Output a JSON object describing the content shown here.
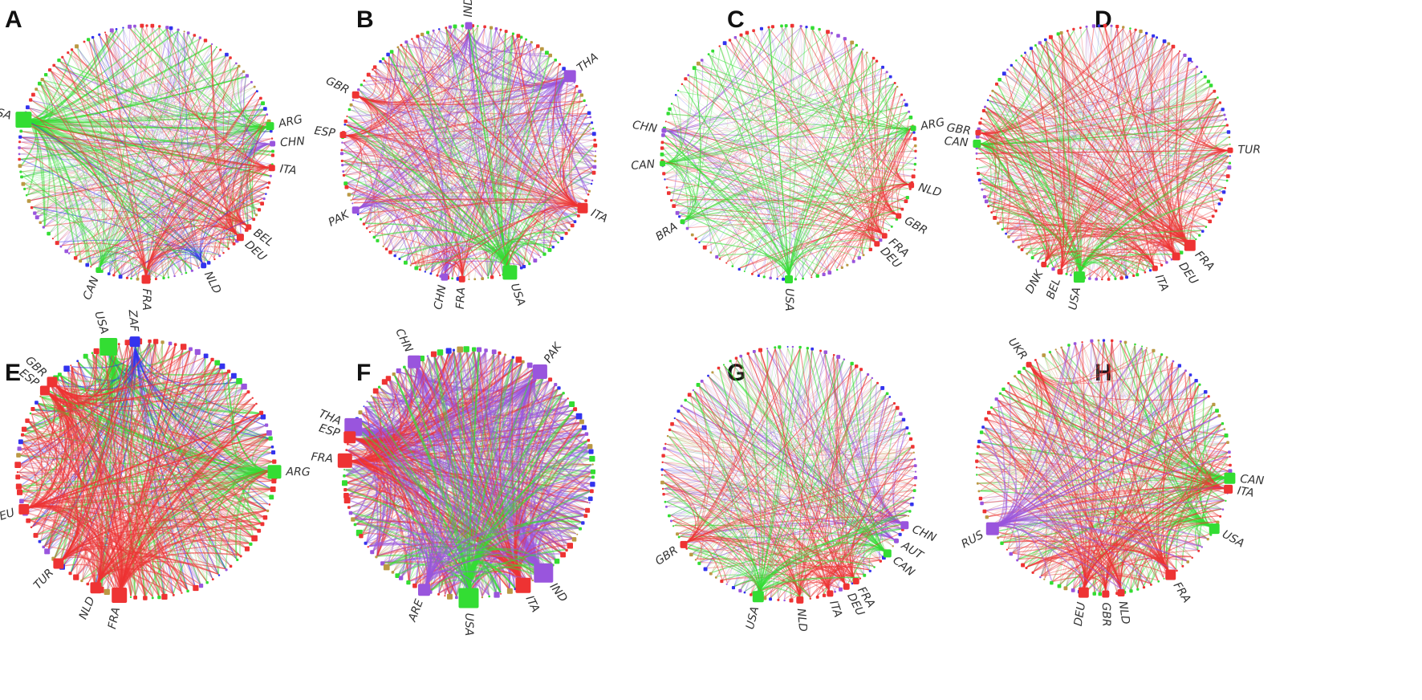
{
  "colors": {
    "green": "#33dd33",
    "red": "#ee3333",
    "purple": "#9955dd",
    "blue": "#3333ee",
    "olive": "#bb9944"
  },
  "panels": [
    {
      "letter": "A",
      "nodes": [
        {
          "label": "USA",
          "angle": 165,
          "size": 20,
          "color": "green"
        },
        {
          "label": "ARG",
          "angle": 12,
          "size": 10,
          "color": "green"
        },
        {
          "label": "CHN",
          "angle": 4,
          "size": 7,
          "color": "purple"
        },
        {
          "label": "ITA",
          "angle": -7,
          "size": 8,
          "color": "red"
        },
        {
          "label": "BEL",
          "angle": -36,
          "size": 7,
          "color": "red"
        },
        {
          "label": "DEU",
          "angle": -42,
          "size": 9,
          "color": "red"
        },
        {
          "label": "NLD",
          "angle": -63,
          "size": 7,
          "color": "blue"
        },
        {
          "label": "FRA",
          "angle": -90,
          "size": 11,
          "color": "red"
        },
        {
          "label": "CAN",
          "angle": -112,
          "size": 7,
          "color": "green"
        }
      ]
    },
    {
      "letter": "B",
      "nodes": [
        {
          "label": "IND",
          "angle": 90,
          "size": 9,
          "color": "purple"
        },
        {
          "label": "THA",
          "angle": 37,
          "size": 15,
          "color": "purple"
        },
        {
          "label": "GBR",
          "angle": 153,
          "size": 9,
          "color": "red"
        },
        {
          "label": "ESP",
          "angle": 172,
          "size": 8,
          "color": "red"
        },
        {
          "label": "PAK",
          "angle": -153,
          "size": 9,
          "color": "purple"
        },
        {
          "label": "CHN",
          "angle": -101,
          "size": 9,
          "color": "purple"
        },
        {
          "label": "FRA",
          "angle": -93,
          "size": 8,
          "color": "red"
        },
        {
          "label": "USA",
          "angle": -71,
          "size": 18,
          "color": "green"
        },
        {
          "label": "ITA",
          "angle": -26,
          "size": 13,
          "color": "red"
        }
      ]
    },
    {
      "letter": "C",
      "nodes": [
        {
          "label": "ARG",
          "angle": 11,
          "size": 7,
          "color": "green"
        },
        {
          "label": "CHN",
          "angle": 170,
          "size": 6,
          "color": "purple"
        },
        {
          "label": "CAN",
          "angle": -175,
          "size": 7,
          "color": "green"
        },
        {
          "label": "NLD",
          "angle": -15,
          "size": 7,
          "color": "red"
        },
        {
          "label": "GBR",
          "angle": -30,
          "size": 7,
          "color": "red"
        },
        {
          "label": "FRA",
          "angle": -41,
          "size": 7,
          "color": "red"
        },
        {
          "label": "DEU",
          "angle": -46,
          "size": 7,
          "color": "red"
        },
        {
          "label": "USA",
          "angle": -90,
          "size": 10,
          "color": "green"
        },
        {
          "label": "BRA",
          "angle": -147,
          "size": 6,
          "color": "green"
        }
      ]
    },
    {
      "letter": "D",
      "nodes": [
        {
          "label": "CAN",
          "angle": 176,
          "size": 10,
          "color": "green"
        },
        {
          "label": "GBR",
          "angle": 171,
          "size": 7,
          "color": "red"
        },
        {
          "label": "TUR",
          "angle": 1,
          "size": 7,
          "color": "red"
        },
        {
          "label": "FRA",
          "angle": -47,
          "size": 14,
          "color": "red"
        },
        {
          "label": "DEU",
          "angle": -55,
          "size": 10,
          "color": "red"
        },
        {
          "label": "ITA",
          "angle": -66,
          "size": 7,
          "color": "red"
        },
        {
          "label": "USA",
          "angle": -101,
          "size": 14,
          "color": "green"
        },
        {
          "label": "BEL",
          "angle": -110,
          "size": 7,
          "color": "red"
        },
        {
          "label": "DNK",
          "angle": -118,
          "size": 7,
          "color": "red"
        }
      ]
    },
    {
      "letter": "E",
      "nodes": [
        {
          "label": "USA",
          "angle": 107,
          "size": 22,
          "color": "green"
        },
        {
          "label": "ZAF",
          "angle": 95,
          "size": 13,
          "color": "blue"
        },
        {
          "label": "GBR",
          "angle": 137,
          "size": 13,
          "color": "red"
        },
        {
          "label": "ESP",
          "angle": 142,
          "size": 12,
          "color": "red"
        },
        {
          "label": "ARG",
          "angle": -1,
          "size": 17,
          "color": "green"
        },
        {
          "label": "DEU",
          "angle": -162,
          "size": 13,
          "color": "red"
        },
        {
          "label": "TUR",
          "angle": -133,
          "size": 13,
          "color": "red"
        },
        {
          "label": "NLD",
          "angle": -113,
          "size": 14,
          "color": "red"
        },
        {
          "label": "FRA",
          "angle": -102,
          "size": 19,
          "color": "red"
        }
      ]
    },
    {
      "letter": "F",
      "nodes": [
        {
          "label": "CHN",
          "angle": 116,
          "size": 16,
          "color": "purple"
        },
        {
          "label": "PAK",
          "angle": 55,
          "size": 18,
          "color": "purple"
        },
        {
          "label": "THA",
          "angle": 158,
          "size": 22,
          "color": "purple"
        },
        {
          "label": "ESP",
          "angle": 163,
          "size": 15,
          "color": "red"
        },
        {
          "label": "FRA",
          "angle": 174,
          "size": 18,
          "color": "red"
        },
        {
          "label": "IND",
          "angle": -53,
          "size": 24,
          "color": "purple"
        },
        {
          "label": "ITA",
          "angle": -64,
          "size": 19,
          "color": "red"
        },
        {
          "label": "USA",
          "angle": -90,
          "size": 25,
          "color": "green"
        },
        {
          "label": "ARE",
          "angle": -111,
          "size": 15,
          "color": "purple"
        }
      ]
    },
    {
      "letter": "G",
      "nodes": [
        {
          "label": "CHN",
          "angle": -24,
          "size": 10,
          "color": "purple"
        },
        {
          "label": "AUT",
          "angle": -32,
          "size": 6,
          "color": "purple"
        },
        {
          "label": "CAN",
          "angle": -39,
          "size": 10,
          "color": "green"
        },
        {
          "label": "FRA",
          "angle": -58,
          "size": 8,
          "color": "red"
        },
        {
          "label": "DEU",
          "angle": -63,
          "size": 8,
          "color": "red"
        },
        {
          "label": "ITA",
          "angle": -71,
          "size": 8,
          "color": "red"
        },
        {
          "label": "NLD",
          "angle": -85,
          "size": 9,
          "color": "red"
        },
        {
          "label": "USA",
          "angle": -104,
          "size": 14,
          "color": "green"
        },
        {
          "label": "GBR",
          "angle": -146,
          "size": 9,
          "color": "red"
        }
      ]
    },
    {
      "letter": "H",
      "nodes": [
        {
          "label": "UKR",
          "angle": 126,
          "size": 7,
          "color": "red"
        },
        {
          "label": "CAN",
          "angle": -5,
          "size": 14,
          "color": "green"
        },
        {
          "label": "ITA",
          "angle": -10,
          "size": 11,
          "color": "red"
        },
        {
          "label": "USA",
          "angle": -29,
          "size": 13,
          "color": "green"
        },
        {
          "label": "FRA",
          "angle": -58,
          "size": 13,
          "color": "red"
        },
        {
          "label": "NLD",
          "angle": -82,
          "size": 9,
          "color": "red"
        },
        {
          "label": "GBR",
          "angle": -89,
          "size": 9,
          "color": "red"
        },
        {
          "label": "DEU",
          "angle": -99,
          "size": 13,
          "color": "red"
        },
        {
          "label": "RUS",
          "angle": -151,
          "size": 16,
          "color": "purple"
        }
      ]
    }
  ]
}
